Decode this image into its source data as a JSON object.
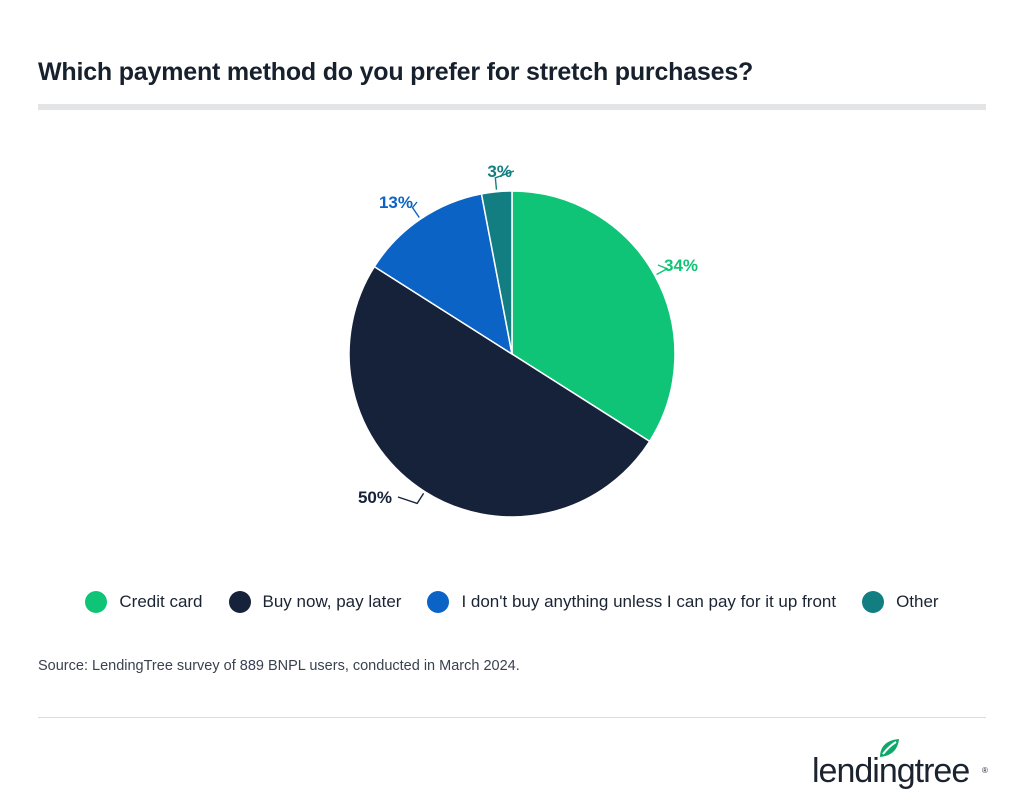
{
  "title": "Which payment method do you prefer for stretch purchases?",
  "chart_data": {
    "type": "pie",
    "title": "Which payment method do you prefer for stretch purchases?",
    "slices": [
      {
        "name": "Credit card",
        "value": 34,
        "label": "34%",
        "color": "#10c477"
      },
      {
        "name": "Buy now, pay later",
        "value": 50,
        "label": "50%",
        "color": "#16223a"
      },
      {
        "name": "I don't buy anything unless I can pay for it up front",
        "value": 13,
        "label": "13%",
        "color": "#0b63c6"
      },
      {
        "name": "Other",
        "value": 3,
        "label": "3%",
        "color": "#127e82"
      }
    ],
    "start_angle": "12 o'clock",
    "direction": "clockwise",
    "legend_position": "bottom"
  },
  "legend": [
    {
      "label": "Credit card",
      "color": "#10c477"
    },
    {
      "label": "Buy now, pay later",
      "color": "#16223a"
    },
    {
      "label": "I don't buy anything unless I can pay for it up front",
      "color": "#0b63c6"
    },
    {
      "label": "Other",
      "color": "#127e82"
    }
  ],
  "source": "Source: LendingTree survey of 889 BNPL users, conducted in March 2024.",
  "logo": {
    "text": "lendingtree",
    "mark": "®",
    "icon": "leaf-icon",
    "color": "#0fa86a"
  }
}
